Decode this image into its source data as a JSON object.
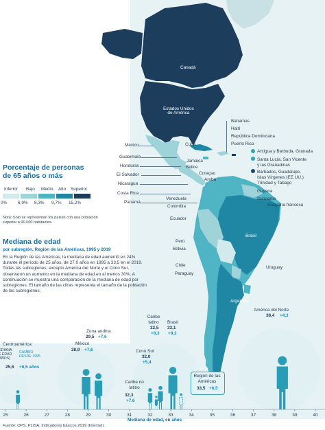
{
  "map": {
    "countries_north": {
      "canada": "Canadá",
      "usa": "Estados Unidos\nde América",
      "mexico": "México",
      "bahamas": "Bahamas",
      "cuba": "Cuba",
      "haiti": "Haití",
      "dominican_republic": "República Dominicana",
      "puerto_rico": "Puerto Rico",
      "guatemala": "Guatemala",
      "honduras": "Honduras",
      "jamaica": "Jamaica",
      "belize": "Belice",
      "el_salvador": "El Salvador",
      "nicaragua": "Nicaragua",
      "costa_rica": "Costa Rica",
      "panama": "Panamá",
      "curacao": "Curaçao",
      "aruba": "Aruba"
    },
    "countries_south": {
      "venezuela": "Venezuela",
      "colombia": "Colombia",
      "ecuador": "Ecuador",
      "guyana": "Guyana",
      "suriname": "Suriname",
      "french_guiana": "Guayana francesa",
      "brazil": "Brasil",
      "peru": "Perú",
      "bolivia": "Bolivia",
      "chile": "Chile",
      "paraguay": "Paraguay",
      "argentina": "Argentina",
      "uruguay": "Uruguay"
    },
    "islands_legend": [
      {
        "label": "Antigua y Barbuda, Granada",
        "color": "#2fa6b4"
      },
      {
        "label": "Santa Lucía, San Vicente\ny las Granadinas",
        "color": "#2fa6b4"
      },
      {
        "label": "Barbados, Guadalupe,\nIslas Vírgenes (EE.UU.)",
        "color": "#1b4b70"
      },
      {
        "label": "Trinidad y Tabago",
        "color": null
      }
    ],
    "colors": {
      "inferior": "#d3eaec",
      "bajo": "#9fd3da",
      "medio": "#4fb4c3",
      "alto": "#1f86a4",
      "superior": "#1c3d5c",
      "ocean": "#e4f1f3"
    }
  },
  "legend": {
    "title": "Porcentaje de personas\nde 65 años o más",
    "categories": [
      "Inferior",
      "Bajo",
      "Medio",
      "Alto",
      "Superior"
    ],
    "thresholds": [
      "0%",
      "6,9%",
      "8,3%",
      "9,7%",
      "15,2%"
    ],
    "note": "Nota: Solo se representan los países con una población superior a 90.000 habitantes."
  },
  "median": {
    "title": "Mediana de edad",
    "subtitle": "por subregión, Región de las Américas, 1995 y 2019",
    "paragraph": "En la Región de las Américas, la mediana de edad aumentó en 24% durante el período de 25 años, de 27,0 años en 1995 a 33,5 en el 2019. Todas las subregiones, excepto América del Norte y el Cono Sur, observaron un aumento en la mediana de edad en al menos 30%. A continuación se muestra una comparación de la mediana de edad por subregiones. El tamaño de las cifras representa el tamaño de la población de las subregiones.",
    "key_median": "MEDIANA\nDE EDAD\n(AÑOS)",
    "key_change": "CAMBIO\nDESDE 1995",
    "axis_label": "Mediana de edad, en años"
  },
  "chart_data": {
    "type": "scatter",
    "xlabel": "Mediana de edad, en años",
    "xlim": [
      25,
      40
    ],
    "x_ticks": [
      25,
      26,
      27,
      28,
      29,
      30,
      31,
      32,
      33,
      34,
      35,
      36,
      37,
      38,
      39,
      40
    ],
    "series": [
      {
        "name": "Centroamérica",
        "x": 25.6,
        "change": "+6,5 años"
      },
      {
        "name": "México",
        "x": 28.9,
        "change": "+7,6"
      },
      {
        "name": "Zona andina",
        "x": 29.5,
        "change": "+7,6"
      },
      {
        "name": "Caribe no latino",
        "x": 32.3,
        "change": "+7,6"
      },
      {
        "name": "Cono Sur",
        "x": 32.0,
        "change": "+5,4"
      },
      {
        "name": "Caribe latino",
        "x": 32.5,
        "change": "+8,3"
      },
      {
        "name": "Brasil",
        "x": 33.1,
        "change": "+9,2"
      },
      {
        "name": "Región de las Américas",
        "x": 33.5,
        "change": "+6,5"
      },
      {
        "name": "América del Norte",
        "x": 38.4,
        "change": "+4,3"
      }
    ]
  },
  "source": "Fuente: OPS. PLISA. Indicadores básicos 2019 (Internet)."
}
